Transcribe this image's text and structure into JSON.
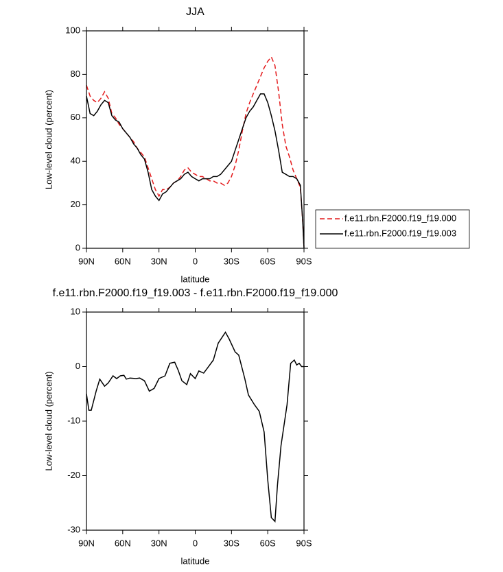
{
  "chart_data": [
    {
      "type": "line",
      "title": "JJA",
      "xlabel": "latitude",
      "ylabel": "Low-level cloud (percent)",
      "x": [
        90,
        87,
        84,
        81,
        78,
        75,
        72,
        69,
        66,
        63,
        60,
        57,
        54,
        51,
        48,
        45,
        42,
        39,
        36,
        33,
        30,
        27,
        24,
        21,
        18,
        15,
        12,
        9,
        6,
        3,
        0,
        -3,
        -6,
        -9,
        -12,
        -15,
        -18,
        -21,
        -24,
        -27,
        -30,
        -33,
        -36,
        -39,
        -42,
        -45,
        -48,
        -51,
        -54,
        -57,
        -60,
        -63,
        -66,
        -69,
        -72,
        -75,
        -78,
        -81,
        -84,
        -87,
        -89,
        -90
      ],
      "series": [
        {
          "name": "f.e11.rbn.F2000.f19_f19.000",
          "color": "#e41a1c",
          "linestyle": "dashed",
          "values": [
            75,
            70,
            68,
            67,
            69,
            72,
            69,
            62,
            60,
            57,
            55,
            53,
            51,
            49,
            46,
            44,
            42,
            37,
            32,
            27,
            24,
            27,
            27,
            28,
            30,
            31,
            33,
            36,
            37,
            35,
            34,
            33,
            33,
            32,
            31,
            31,
            30,
            30,
            29,
            30,
            33,
            38,
            45,
            54,
            62,
            67,
            71,
            75,
            79,
            83,
            86,
            88,
            84,
            72,
            57,
            47,
            42,
            36,
            32,
            28,
            12,
            0
          ]
        },
        {
          "name": "f.e11.rbn.F2000.f19_f19.003",
          "color": "#000000",
          "linestyle": "solid",
          "values": [
            70,
            62,
            61,
            63,
            66,
            68,
            67,
            61,
            59,
            58,
            55,
            53,
            51,
            48,
            46,
            43,
            41,
            35,
            27,
            24,
            22,
            25,
            26,
            28,
            30,
            31,
            32,
            34,
            35,
            33,
            32,
            31,
            32,
            32,
            32,
            33,
            33,
            34,
            36,
            38,
            40,
            45,
            50,
            55,
            60,
            63,
            65,
            68,
            71,
            71,
            67,
            61,
            54,
            45,
            35,
            34,
            33,
            33,
            32,
            29,
            12,
            0
          ]
        }
      ],
      "xlim": [
        90,
        -90
      ],
      "xticks": [
        {
          "value": 90,
          "label": "90N"
        },
        {
          "value": 60,
          "label": "60N"
        },
        {
          "value": 30,
          "label": "30N"
        },
        0,
        {
          "value": -30,
          "label": "30S"
        },
        {
          "value": -60,
          "label": "60S"
        },
        {
          "value": -90,
          "label": "90S"
        }
      ],
      "ylim": [
        0,
        100
      ],
      "yticks": [
        0,
        20,
        40,
        60,
        80,
        100
      ],
      "legend": "right"
    },
    {
      "type": "line",
      "title": "f.e11.rbn.F2000.f19_f19.003 - f.e11.rbn.F2000.f19_f19.000",
      "xlabel": "latitude",
      "ylabel": "Low-level cloud (percent)",
      "x": [
        90,
        88,
        86,
        82,
        79,
        75,
        72,
        68,
        65,
        62,
        59,
        57,
        54,
        49,
        46,
        42,
        38,
        34,
        30,
        25,
        21,
        17,
        14,
        11,
        7,
        4,
        0,
        -3,
        -7,
        -10,
        -15,
        -19,
        -25,
        -28,
        -33,
        -36,
        -41,
        -44,
        -49,
        -53,
        -57,
        -60,
        -63,
        -66,
        -68,
        -71,
        -76,
        -79,
        -82,
        -84,
        -86,
        -88,
        -90
      ],
      "series": [
        {
          "color": "#000000",
          "linestyle": "solid",
          "values": [
            -5,
            -8,
            -8,
            -4.5,
            -2.3,
            -3.6,
            -3,
            -1.7,
            -2.2,
            -1.7,
            -1.6,
            -2.3,
            -2.1,
            -2.2,
            -2.1,
            -2.6,
            -4.5,
            -4,
            -2.2,
            -1.7,
            0.6,
            0.8,
            -0.7,
            -2.6,
            -3.3,
            -1.3,
            -2.2,
            -0.8,
            -1.2,
            -0.3,
            1.2,
            4.3,
            6.3,
            5.1,
            2.7,
            2.1,
            -2.2,
            -5.2,
            -7,
            -8.2,
            -12,
            -20.8,
            -27.7,
            -28.4,
            -21.8,
            -14.5,
            -7,
            0.6,
            1.2,
            0.3,
            0.6,
            0,
            0
          ]
        }
      ],
      "xlim": [
        90,
        -90
      ],
      "xticks": [
        {
          "value": 90,
          "label": "90N"
        },
        {
          "value": 60,
          "label": "60N"
        },
        {
          "value": 30,
          "label": "30N"
        },
        0,
        {
          "value": -30,
          "label": "30S"
        },
        {
          "value": -60,
          "label": "60S"
        },
        {
          "value": -90,
          "label": "90S"
        }
      ],
      "ylim": [
        -30,
        10
      ],
      "yticks": [
        -30,
        -20,
        -10,
        0,
        10
      ]
    }
  ]
}
